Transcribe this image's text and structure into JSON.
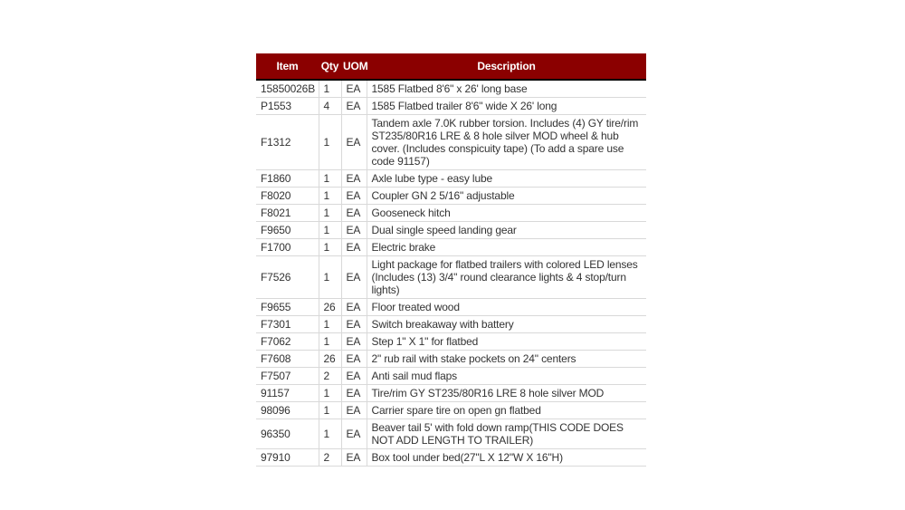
{
  "colors": {
    "header_bg": "#8B0000",
    "header_text": "#FFFFFF",
    "header_bottom_border": "#000000",
    "grid_line": "#D9D9D9",
    "body_text": "#333333",
    "page_bg": "#FFFFFF"
  },
  "table": {
    "header": {
      "item": "Item",
      "qty": "Qty",
      "uom": "UOM",
      "description": "Description"
    },
    "rows": [
      {
        "item": "15850026B",
        "qty": "1",
        "uom": "EA",
        "description": "1585 Flatbed 8'6\" x 26' long base"
      },
      {
        "item": "P1553",
        "qty": "4",
        "uom": "EA",
        "description": "1585 Flatbed trailer 8'6\" wide X 26' long"
      },
      {
        "item": "F1312",
        "qty": "1",
        "uom": "EA",
        "description": "Tandem axle 7.0K rubber torsion. Includes (4) GY tire/rim ST235/80R16 LRE & 8 hole silver MOD wheel & hub cover. (Includes conspicuity tape) (To add a spare use code 91157)"
      },
      {
        "item": "F1860",
        "qty": "1",
        "uom": "EA",
        "description": "Axle lube type - easy lube"
      },
      {
        "item": "F8020",
        "qty": "1",
        "uom": "EA",
        "description": "Coupler GN 2 5/16\" adjustable"
      },
      {
        "item": "F8021",
        "qty": "1",
        "uom": "EA",
        "description": "Gooseneck hitch"
      },
      {
        "item": "F9650",
        "qty": "1",
        "uom": "EA",
        "description": "Dual single speed landing gear"
      },
      {
        "item": "F1700",
        "qty": "1",
        "uom": "EA",
        "description": "Electric brake"
      },
      {
        "item": "F7526",
        "qty": "1",
        "uom": "EA",
        "description": "Light package for flatbed trailers with colored LED lenses (Includes (13) 3/4\" round clearance lights & 4 stop/turn lights)"
      },
      {
        "item": "F9655",
        "qty": "26",
        "uom": "EA",
        "description": "Floor treated wood"
      },
      {
        "item": "F7301",
        "qty": "1",
        "uom": "EA",
        "description": "Switch breakaway with battery"
      },
      {
        "item": "F7062",
        "qty": "1",
        "uom": "EA",
        "description": "Step 1\" X 1\" for flatbed"
      },
      {
        "item": "F7608",
        "qty": "26",
        "uom": "EA",
        "description": "2\" rub rail with stake pockets on 24\" centers"
      },
      {
        "item": "F7507",
        "qty": "2",
        "uom": "EA",
        "description": "Anti sail mud flaps"
      },
      {
        "item": "91157",
        "qty": "1",
        "uom": "EA",
        "description": "Tire/rim GY ST235/80R16 LRE 8 hole silver MOD"
      },
      {
        "item": "98096",
        "qty": "1",
        "uom": "EA",
        "description": "Carrier spare tire on open gn flatbed"
      },
      {
        "item": "96350",
        "qty": "1",
        "uom": "EA",
        "description": "Beaver tail 5' with fold down ramp(THIS CODE DOES NOT ADD LENGTH TO TRAILER)"
      },
      {
        "item": "97910",
        "qty": "2",
        "uom": "EA",
        "description": "Box tool under bed(27\"L X 12\"W X 16\"H)"
      }
    ]
  }
}
